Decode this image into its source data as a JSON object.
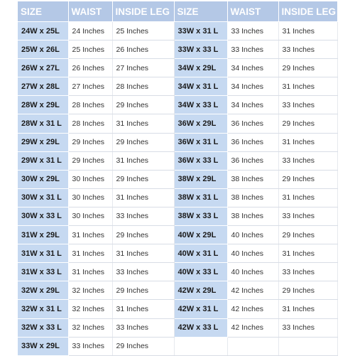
{
  "headers": [
    "SIZE",
    "WAIST",
    "INSIDE LEG",
    "SIZE",
    "WAIST",
    "INSIDE LEG"
  ],
  "left_rows": [
    {
      "size": "24W x 25L",
      "waist": "24 Inches",
      "leg": "25 Inches"
    },
    {
      "size": "25W x 26L",
      "waist": "25 Inches",
      "leg": "26 Inches"
    },
    {
      "size": "26W x 27L",
      "waist": "26 Inches",
      "leg": "27 Inches"
    },
    {
      "size": "27W x 28L",
      "waist": "27 Inches",
      "leg": "28 Inches"
    },
    {
      "size": "28W x 29L",
      "waist": "28 Inches",
      "leg": "29 Inches"
    },
    {
      "size": "28W x 31 L",
      "waist": "28 Inches",
      "leg": "31 Inches"
    },
    {
      "size": "29W x 29L",
      "waist": "29 Inches",
      "leg": "29 Inches"
    },
    {
      "size": "29W x 31 L",
      "waist": "29 Inches",
      "leg": "31 Inches"
    },
    {
      "size": "30W x 29L",
      "waist": "30 Inches",
      "leg": "29 Inches"
    },
    {
      "size": "30W x 31 L",
      "waist": "30 Inches",
      "leg": "31 Inches"
    },
    {
      "size": "30W x 33 L",
      "waist": "30 Inches",
      "leg": "33 Inches"
    },
    {
      "size": "31W x 29L",
      "waist": "31 Inches",
      "leg": "29 Inches"
    },
    {
      "size": "31W x 31 L",
      "waist": "31 Inches",
      "leg": "31 Inches"
    },
    {
      "size": "31W x 33 L",
      "waist": "31 Inches",
      "leg": "33 Inches"
    },
    {
      "size": "32W x 29L",
      "waist": "32 Inches",
      "leg": "29 Inches"
    },
    {
      "size": "32W x 31 L",
      "waist": "32 Inches",
      "leg": "31 Inches"
    },
    {
      "size": "32W x 33 L",
      "waist": "32 Inches",
      "leg": "33 Inches"
    },
    {
      "size": "33W x 29L",
      "waist": "33 Inches",
      "leg": "29 Inches"
    }
  ],
  "right_rows": [
    {
      "size": "33W x 31 L",
      "waist": "33 Inches",
      "leg": "31 Inches"
    },
    {
      "size": "33W x 33 L",
      "waist": "33 Inches",
      "leg": "33 Inches"
    },
    {
      "size": "34W x 29L",
      "waist": "34 Inches",
      "leg": "29 Inches"
    },
    {
      "size": "34W x 31 L",
      "waist": "34 Inches",
      "leg": "31 Inches"
    },
    {
      "size": "34W x 33 L",
      "waist": "34 Inches",
      "leg": "33 Inches"
    },
    {
      "size": "36W x 29L",
      "waist": "36 Inches",
      "leg": "29 Inches"
    },
    {
      "size": "36W x 31 L",
      "waist": "36 Inches",
      "leg": "31 Inches"
    },
    {
      "size": "36W x 33 L",
      "waist": "36 Inches",
      "leg": "33 Inches"
    },
    {
      "size": "38W x 29L",
      "waist": "38 Inches",
      "leg": "29 Inches"
    },
    {
      "size": "38W x 31 L",
      "waist": "38 Inches",
      "leg": "31 Inches"
    },
    {
      "size": "38W x 33 L",
      "waist": "38 Inches",
      "leg": "33 Inches"
    },
    {
      "size": "40W x 29L",
      "waist": "40 Inches",
      "leg": "29 Inches"
    },
    {
      "size": "40W x 31 L",
      "waist": "40 Inches",
      "leg": "31 Inches"
    },
    {
      "size": "40W x 33 L",
      "waist": "40 Inches",
      "leg": "33 Inches"
    },
    {
      "size": "42W x 29L",
      "waist": "42 Inches",
      "leg": "29 Inches"
    },
    {
      "size": "42W x 31 L",
      "waist": "42 Inches",
      "leg": "31 Inches"
    },
    {
      "size": "42W x 33 L",
      "waist": "42 Inches",
      "leg": "33 Inches"
    }
  ],
  "colors": {
    "header_bg": "#b4c8e6",
    "size_cell_bg": "#c6d9f1",
    "header_text": "#ffffff"
  }
}
